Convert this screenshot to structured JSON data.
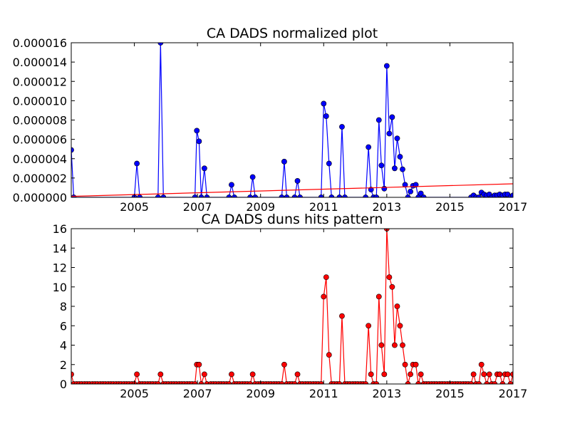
{
  "chart_data": [
    {
      "type": "line",
      "title": "CA DADS normalized plot",
      "xlabel": "",
      "ylabel": "",
      "xlim": [
        2003.0,
        2017.0
      ],
      "ylim": [
        0,
        1.6e-05
      ],
      "xticks": [
        2005,
        2007,
        2009,
        2011,
        2013,
        2015,
        2017
      ],
      "xtick_labels": [
        "2005",
        "2007",
        "2009",
        "2011",
        "2013",
        "2015",
        "2017"
      ],
      "yticks": [
        0,
        2e-06,
        4e-06,
        6e-06,
        8e-06,
        1e-05,
        1.2e-05,
        1.4e-05,
        1.6e-05
      ],
      "ytick_labels": [
        "0.000000",
        "0.000002",
        "0.000004",
        "0.000006",
        "0.000008",
        "0.000010",
        "0.000012",
        "0.000014",
        "0.000016"
      ],
      "series": [
        {
          "color": "#0000ff",
          "marker": "circle",
          "points": [
            [
              2003.0,
              4.9e-06
            ],
            [
              2003.08,
              0
            ],
            [
              2005.0,
              0
            ],
            [
              2005.08,
              3.5e-06
            ],
            [
              2005.17,
              0
            ],
            [
              2005.75,
              0
            ],
            [
              2005.83,
              1.6e-05
            ],
            [
              2005.92,
              0
            ],
            [
              2006.92,
              0
            ],
            [
              2006.98,
              6.9e-06
            ],
            [
              2007.05,
              5.8e-06
            ],
            [
              2007.12,
              0
            ],
            [
              2007.22,
              3e-06
            ],
            [
              2007.3,
              0
            ],
            [
              2008.0,
              0
            ],
            [
              2008.08,
              1.3e-06
            ],
            [
              2008.17,
              0
            ],
            [
              2008.67,
              0
            ],
            [
              2008.75,
              2.1e-06
            ],
            [
              2008.83,
              0
            ],
            [
              2009.67,
              0
            ],
            [
              2009.75,
              3.7e-06
            ],
            [
              2009.83,
              0
            ],
            [
              2010.08,
              0
            ],
            [
              2010.17,
              1.7e-06
            ],
            [
              2010.25,
              0
            ],
            [
              2010.92,
              0
            ],
            [
              2011.0,
              9.7e-06
            ],
            [
              2011.08,
              8.4e-06
            ],
            [
              2011.17,
              3.5e-06
            ],
            [
              2011.25,
              0
            ],
            [
              2011.5,
              0
            ],
            [
              2011.58,
              7.3e-06
            ],
            [
              2011.67,
              0
            ],
            [
              2012.33,
              0
            ],
            [
              2012.42,
              5.2e-06
            ],
            [
              2012.5,
              8e-07
            ],
            [
              2012.58,
              0
            ],
            [
              2012.67,
              0
            ],
            [
              2012.75,
              8e-06
            ],
            [
              2012.83,
              3.3e-06
            ],
            [
              2012.92,
              9e-07
            ],
            [
              2013.0,
              1.36e-05
            ],
            [
              2013.08,
              6.6e-06
            ],
            [
              2013.17,
              8.3e-06
            ],
            [
              2013.25,
              3e-06
            ],
            [
              2013.33,
              6.1e-06
            ],
            [
              2013.42,
              4.2e-06
            ],
            [
              2013.5,
              2.9e-06
            ],
            [
              2013.58,
              1.3e-06
            ],
            [
              2013.67,
              0
            ],
            [
              2013.75,
              6e-07
            ],
            [
              2013.83,
              1.2e-06
            ],
            [
              2013.92,
              1.3e-06
            ],
            [
              2014.0,
              0
            ],
            [
              2014.08,
              4e-07
            ],
            [
              2014.17,
              0
            ],
            [
              2015.67,
              0
            ],
            [
              2015.75,
              2e-07
            ],
            [
              2015.83,
              0
            ],
            [
              2015.92,
              0
            ],
            [
              2016.0,
              5e-07
            ],
            [
              2016.08,
              3e-07
            ],
            [
              2016.17,
              2e-07
            ],
            [
              2016.25,
              3e-07
            ],
            [
              2016.33,
              0
            ],
            [
              2016.42,
              2e-07
            ],
            [
              2016.5,
              2e-07
            ],
            [
              2016.58,
              3e-07
            ],
            [
              2016.67,
              2e-07
            ],
            [
              2016.75,
              3e-07
            ],
            [
              2016.83,
              3e-07
            ],
            [
              2016.92,
              0
            ],
            [
              2017.0,
              2e-07
            ]
          ]
        },
        {
          "color": "#ff0000",
          "marker": "none",
          "points": [
            [
              2003.0,
              1e-07
            ],
            [
              2017.0,
              1.4e-06
            ]
          ]
        }
      ]
    },
    {
      "type": "line",
      "title": "CA DADS duns hits pattern",
      "xlabel": "",
      "ylabel": "",
      "xlim": [
        2003.0,
        2017.0
      ],
      "ylim": [
        0,
        16
      ],
      "xticks": [
        2005,
        2007,
        2009,
        2011,
        2013,
        2015,
        2017
      ],
      "xtick_labels": [
        "2005",
        "2007",
        "2009",
        "2011",
        "2013",
        "2015",
        "2017"
      ],
      "yticks": [
        0,
        2,
        4,
        6,
        8,
        10,
        12,
        14,
        16
      ],
      "ytick_labels": [
        "0",
        "2",
        "4",
        "6",
        "8",
        "10",
        "12",
        "14",
        "16"
      ],
      "series": [
        {
          "color": "#ff0000",
          "marker": "circle",
          "points": [
            [
              2003.0,
              1
            ],
            [
              2003.08,
              0
            ],
            [
              2003.17,
              0
            ],
            [
              2003.25,
              0
            ],
            [
              2003.33,
              0
            ],
            [
              2003.42,
              0
            ],
            [
              2003.5,
              0
            ],
            [
              2003.58,
              0
            ],
            [
              2003.67,
              0
            ],
            [
              2003.75,
              0
            ],
            [
              2003.83,
              0
            ],
            [
              2003.92,
              0
            ],
            [
              2004.0,
              0
            ],
            [
              2004.08,
              0
            ],
            [
              2004.17,
              0
            ],
            [
              2004.25,
              0
            ],
            [
              2004.33,
              0
            ],
            [
              2004.42,
              0
            ],
            [
              2004.5,
              0
            ],
            [
              2004.58,
              0
            ],
            [
              2004.67,
              0
            ],
            [
              2004.75,
              0
            ],
            [
              2004.83,
              0
            ],
            [
              2004.92,
              0
            ],
            [
              2005.0,
              0
            ],
            [
              2005.08,
              1
            ],
            [
              2005.17,
              0
            ],
            [
              2005.25,
              0
            ],
            [
              2005.33,
              0
            ],
            [
              2005.42,
              0
            ],
            [
              2005.5,
              0
            ],
            [
              2005.58,
              0
            ],
            [
              2005.67,
              0
            ],
            [
              2005.75,
              0
            ],
            [
              2005.83,
              1
            ],
            [
              2005.92,
              0
            ],
            [
              2006.0,
              0
            ],
            [
              2006.08,
              0
            ],
            [
              2006.17,
              0
            ],
            [
              2006.25,
              0
            ],
            [
              2006.33,
              0
            ],
            [
              2006.42,
              0
            ],
            [
              2006.5,
              0
            ],
            [
              2006.58,
              0
            ],
            [
              2006.67,
              0
            ],
            [
              2006.75,
              0
            ],
            [
              2006.83,
              0
            ],
            [
              2006.92,
              0
            ],
            [
              2006.98,
              2
            ],
            [
              2007.05,
              2
            ],
            [
              2007.12,
              0
            ],
            [
              2007.22,
              1
            ],
            [
              2007.3,
              0
            ],
            [
              2007.42,
              0
            ],
            [
              2007.5,
              0
            ],
            [
              2007.58,
              0
            ],
            [
              2007.67,
              0
            ],
            [
              2007.75,
              0
            ],
            [
              2007.83,
              0
            ],
            [
              2007.92,
              0
            ],
            [
              2008.0,
              0
            ],
            [
              2008.08,
              1
            ],
            [
              2008.17,
              0
            ],
            [
              2008.25,
              0
            ],
            [
              2008.33,
              0
            ],
            [
              2008.42,
              0
            ],
            [
              2008.5,
              0
            ],
            [
              2008.58,
              0
            ],
            [
              2008.67,
              0
            ],
            [
              2008.75,
              1
            ],
            [
              2008.83,
              0
            ],
            [
              2008.92,
              0
            ],
            [
              2009.0,
              0
            ],
            [
              2009.08,
              0
            ],
            [
              2009.17,
              0
            ],
            [
              2009.25,
              0
            ],
            [
              2009.33,
              0
            ],
            [
              2009.42,
              0
            ],
            [
              2009.5,
              0
            ],
            [
              2009.58,
              0
            ],
            [
              2009.67,
              0
            ],
            [
              2009.75,
              2
            ],
            [
              2009.83,
              0
            ],
            [
              2009.92,
              0
            ],
            [
              2010.0,
              0
            ],
            [
              2010.08,
              0
            ],
            [
              2010.17,
              1
            ],
            [
              2010.25,
              0
            ],
            [
              2010.33,
              0
            ],
            [
              2010.42,
              0
            ],
            [
              2010.5,
              0
            ],
            [
              2010.58,
              0
            ],
            [
              2010.67,
              0
            ],
            [
              2010.75,
              0
            ],
            [
              2010.83,
              0
            ],
            [
              2010.92,
              0
            ],
            [
              2011.0,
              9
            ],
            [
              2011.08,
              11
            ],
            [
              2011.17,
              3
            ],
            [
              2011.25,
              0
            ],
            [
              2011.33,
              0
            ],
            [
              2011.42,
              0
            ],
            [
              2011.5,
              0
            ],
            [
              2011.58,
              7
            ],
            [
              2011.67,
              0
            ],
            [
              2011.75,
              0
            ],
            [
              2011.83,
              0
            ],
            [
              2011.92,
              0
            ],
            [
              2012.0,
              0
            ],
            [
              2012.08,
              0
            ],
            [
              2012.17,
              0
            ],
            [
              2012.25,
              0
            ],
            [
              2012.33,
              0
            ],
            [
              2012.42,
              6
            ],
            [
              2012.5,
              1
            ],
            [
              2012.58,
              0
            ],
            [
              2012.67,
              0
            ],
            [
              2012.75,
              9
            ],
            [
              2012.83,
              4
            ],
            [
              2012.92,
              1
            ],
            [
              2013.0,
              16
            ],
            [
              2013.08,
              11
            ],
            [
              2013.17,
              10
            ],
            [
              2013.25,
              4
            ],
            [
              2013.33,
              8
            ],
            [
              2013.42,
              6
            ],
            [
              2013.5,
              4
            ],
            [
              2013.58,
              2
            ],
            [
              2013.67,
              0
            ],
            [
              2013.75,
              1
            ],
            [
              2013.83,
              2
            ],
            [
              2013.92,
              2
            ],
            [
              2014.0,
              0
            ],
            [
              2014.08,
              1
            ],
            [
              2014.17,
              0
            ],
            [
              2014.25,
              0
            ],
            [
              2014.33,
              0
            ],
            [
              2014.42,
              0
            ],
            [
              2014.5,
              0
            ],
            [
              2014.58,
              0
            ],
            [
              2014.67,
              0
            ],
            [
              2014.75,
              0
            ],
            [
              2014.83,
              0
            ],
            [
              2014.92,
              0
            ],
            [
              2015.0,
              0
            ],
            [
              2015.08,
              0
            ],
            [
              2015.17,
              0
            ],
            [
              2015.25,
              0
            ],
            [
              2015.33,
              0
            ],
            [
              2015.42,
              0
            ],
            [
              2015.5,
              0
            ],
            [
              2015.58,
              0
            ],
            [
              2015.67,
              0
            ],
            [
              2015.75,
              1
            ],
            [
              2015.83,
              0
            ],
            [
              2015.92,
              0
            ],
            [
              2016.0,
              2
            ],
            [
              2016.08,
              1
            ],
            [
              2016.17,
              0
            ],
            [
              2016.25,
              1
            ],
            [
              2016.33,
              0
            ],
            [
              2016.42,
              0
            ],
            [
              2016.5,
              1
            ],
            [
              2016.58,
              1
            ],
            [
              2016.67,
              0
            ],
            [
              2016.75,
              1
            ],
            [
              2016.83,
              1
            ],
            [
              2016.92,
              0
            ],
            [
              2017.0,
              1
            ]
          ]
        }
      ]
    }
  ]
}
